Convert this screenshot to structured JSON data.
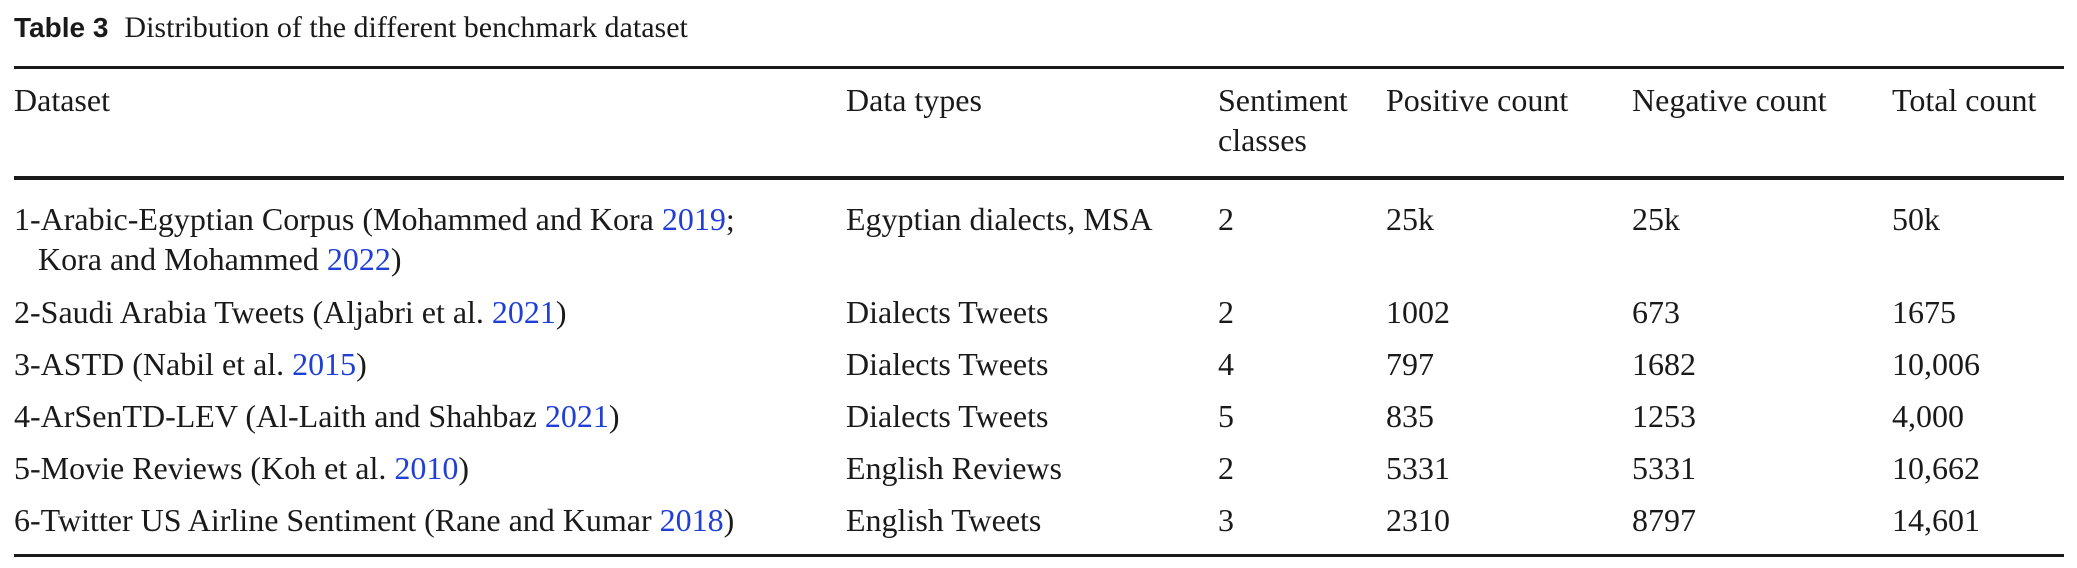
{
  "caption": {
    "label": "Table 3",
    "text": "Distribution of the different benchmark dataset"
  },
  "columns": [
    "Dataset",
    "Data types",
    "Sentiment",
    "classes",
    "Positive count",
    "Negative count",
    "Total count"
  ],
  "rows": [
    {
      "dataset_pre": "1-Arabic-Egyptian Corpus (Mohammed and Kora ",
      "ref1": "2019",
      "dataset_mid": ";",
      "dataset_line2_pre": "Kora and Mohammed ",
      "ref2": "2022",
      "dataset_line2_post": ")",
      "data_types": "Egyptian dialects, MSA",
      "classes": "2",
      "positive": "25k",
      "negative": "25k",
      "total": "50k"
    },
    {
      "dataset_pre": "2-Saudi Arabia Tweets (Aljabri et al. ",
      "ref1": "2021",
      "dataset_post": ")",
      "data_types": "Dialects Tweets",
      "classes": "2",
      "positive": "1002",
      "negative": "673",
      "total": "1675"
    },
    {
      "dataset_pre": "3-ASTD (Nabil et al. ",
      "ref1": "2015",
      "dataset_post": ")",
      "data_types": "Dialects Tweets",
      "classes": "4",
      "positive": "797",
      "negative": "1682",
      "total": "10,006"
    },
    {
      "dataset_pre": "4-ArSenTD-LEV (Al-Laith and Shahbaz ",
      "ref1": "2021",
      "dataset_post": ")",
      "data_types": "Dialects Tweets",
      "classes": "5",
      "positive": "835",
      "negative": "1253",
      "total": "4,000"
    },
    {
      "dataset_pre": "5-Movie Reviews (Koh et al. ",
      "ref1": "2010",
      "dataset_post": ")",
      "data_types": "English Reviews",
      "classes": "2",
      "positive": "5331",
      "negative": "5331",
      "total": "10,662"
    },
    {
      "dataset_pre": "6-Twitter US Airline Sentiment (Rane and Kumar ",
      "ref1": "2018",
      "dataset_post": ")",
      "data_types": "English Tweets",
      "classes": "3",
      "positive": "2310",
      "negative": "8797",
      "total": "14,601"
    }
  ]
}
